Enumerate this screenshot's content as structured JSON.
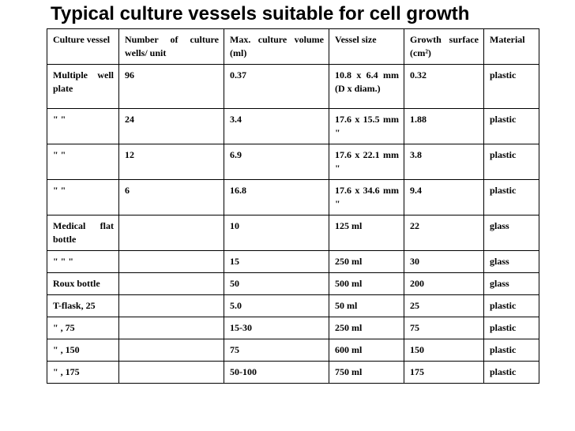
{
  "title": "Typical culture vessels suitable for cell growth",
  "table": {
    "headers": [
      "Culture vessel",
      "Number of culture wells/ unit",
      "Max. culture volume (ml)",
      "Vessel size",
      "Growth surface (cm²)",
      "Material"
    ],
    "rows": [
      [
        "Multiple well plate",
        "96",
        "0.37",
        "10.8 x 6.4 mm (D x diam.)",
        "0.32",
        "plastic"
      ],
      [
        "\" \"",
        "24",
        "3.4",
        "17.6 x 15.5 mm \"",
        "1.88",
        "plastic"
      ],
      [
        "\" \"",
        "12",
        "6.9",
        "17.6 x 22.1 mm \"",
        "3.8",
        "plastic"
      ],
      [
        "\" \"",
        "6",
        "16.8",
        "17.6 x 34.6 mm \"",
        "9.4",
        "plastic"
      ],
      [
        "Medical flat bottle",
        "",
        "10",
        "125 ml",
        "22",
        "glass"
      ],
      [
        "\" \" \"",
        "",
        "15",
        "250 ml",
        "30",
        "glass"
      ],
      [
        "Roux bottle",
        "",
        "50",
        "500 ml",
        "200",
        "glass"
      ],
      [
        "T-flask, 25",
        "",
        "5.0",
        "50 ml",
        "25",
        "plastic"
      ],
      [
        "\" , 75",
        "",
        "15-30",
        "250 ml",
        "75",
        "plastic"
      ],
      [
        "\" , 150",
        "",
        "75",
        "600 ml",
        "150",
        "plastic"
      ],
      [
        "\" , 175",
        "",
        "50-100",
        "750 ml",
        "175",
        "plastic"
      ]
    ]
  }
}
